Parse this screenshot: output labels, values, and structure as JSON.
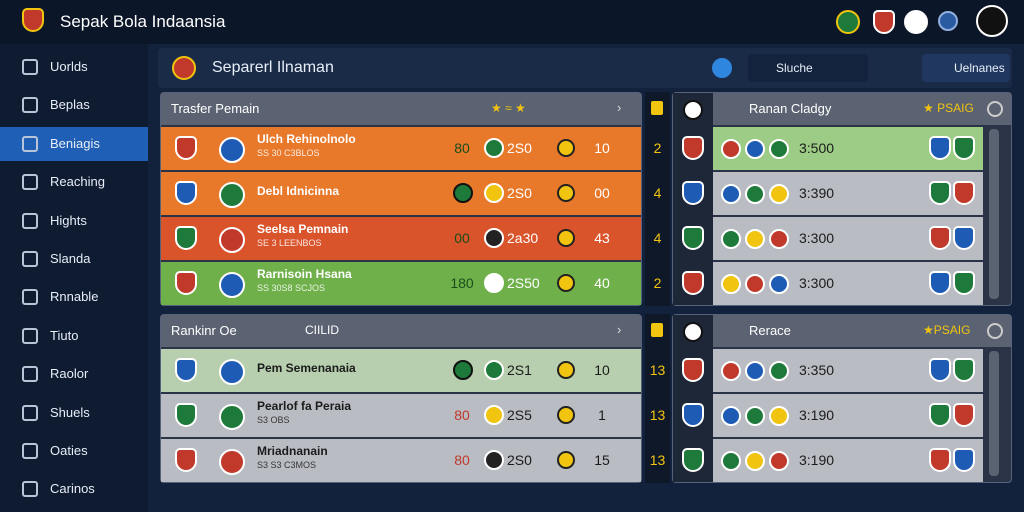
{
  "header": {
    "title": "Sepak Bola Indaansia"
  },
  "sidebar": {
    "items": [
      "Uorlds",
      "Beplas",
      "Beniagis",
      "Reaching",
      "Hights",
      "Slanda",
      "Rnnable",
      "Tiuto",
      "Raolor",
      "Shuels",
      "Oaties",
      "Carinos"
    ]
  },
  "page": {
    "title": "Separerl Ilnaman",
    "buttons": [
      "Sluche",
      "Uelnanes"
    ]
  },
  "panels": [
    {
      "title": "Trasfer Pemain",
      "tag": "★ ≈ ★",
      "rows": [
        {
          "name": "Ulch Rehinolnolo",
          "sub": "SS 30 C3BLOS",
          "score": "80",
          "value": "2S0",
          "count": "10"
        },
        {
          "name": "Debl Idnicinna",
          "sub": "",
          "score": "",
          "value": "2S0",
          "count": "00"
        },
        {
          "name": "Seelsa Pemnain",
          "sub": "SE 3 LEENBOS",
          "score": "00",
          "value": "2a30",
          "count": "43"
        },
        {
          "name": "Rarnisoin Hsana",
          "sub": "SS 30S8 SCJOS",
          "score": "180",
          "value": "2S50",
          "count": "40"
        }
      ],
      "side_numbers": [
        "2",
        "4",
        "4",
        "2"
      ],
      "detail": {
        "title": "Ranan Cladgy",
        "tag": "★ PSAIG",
        "values": [
          "3:500",
          "3:390",
          "3:300",
          "3:300"
        ]
      }
    },
    {
      "title": "Rankinr Oe",
      "tag": "CIILID",
      "rows": [
        {
          "name": "Pem Semenanaia",
          "sub": "",
          "score": "",
          "value": "2S1",
          "count": "10"
        },
        {
          "name": "Pearlof fa Peraia",
          "sub": "S3 OBS",
          "score": "80",
          "value": "2S5",
          "count": "1"
        },
        {
          "name": "Mriadnanain",
          "sub": "S3 S3 C3MOS",
          "score": "80",
          "value": "2S0",
          "count": "15"
        }
      ],
      "side_numbers": [
        "13",
        "13",
        "13"
      ],
      "detail": {
        "title": "Rerace",
        "tag": "★PSAIG",
        "values": [
          "3:350",
          "3:190",
          "3:190"
        ]
      }
    }
  ]
}
